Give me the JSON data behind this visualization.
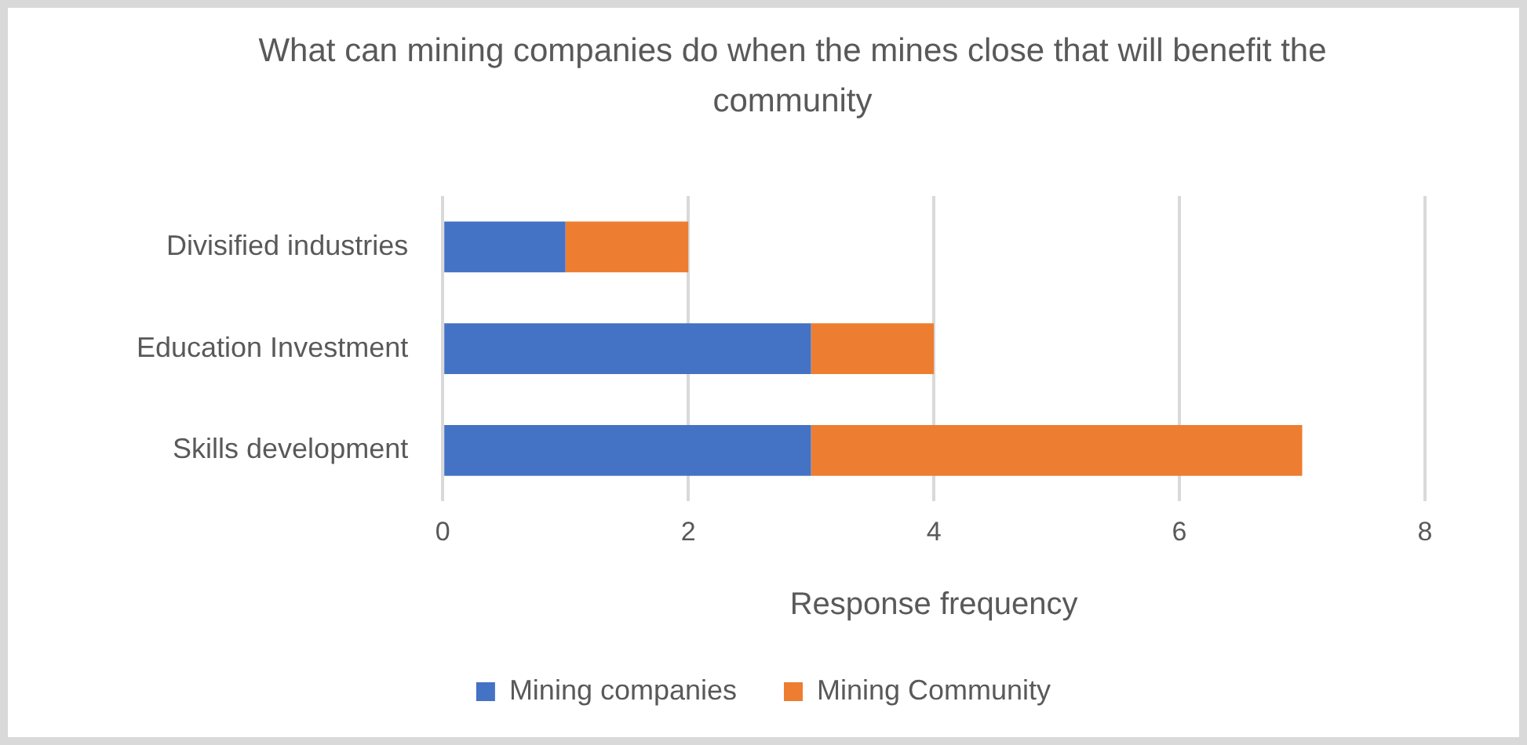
{
  "chart_data": {
    "type": "bar",
    "orientation": "horizontal",
    "stacked": true,
    "title": "What can mining companies do when the mines close that will benefit the community",
    "xlabel": "Response frequency",
    "categories": [
      "Divisified industries",
      "Education Investment",
      "Skills development"
    ],
    "series": [
      {
        "name": "Mining companies",
        "color": "#4472c4",
        "values": [
          1,
          3,
          3
        ]
      },
      {
        "name": "Mining Community",
        "color": "#ed7d31",
        "values": [
          1,
          1,
          4
        ]
      }
    ],
    "xlim": [
      0,
      8
    ],
    "xticks": [
      0,
      2,
      4,
      6,
      8
    ],
    "grid": "x",
    "legend": "bottom"
  }
}
